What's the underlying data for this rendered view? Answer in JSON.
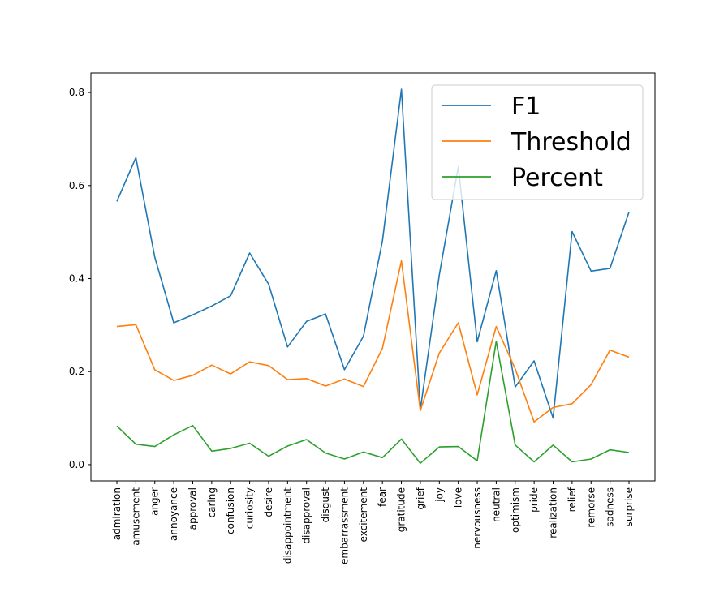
{
  "chart_data": {
    "type": "line",
    "title": "",
    "xlabel": "",
    "ylabel": "",
    "categories": [
      "admiration",
      "amusement",
      "anger",
      "annoyance",
      "approval",
      "caring",
      "confusion",
      "curiosity",
      "desire",
      "disappointment",
      "disapproval",
      "disgust",
      "embarrassment",
      "excitement",
      "fear",
      "gratitude",
      "grief",
      "joy",
      "love",
      "nervousness",
      "neutral",
      "optimism",
      "pride",
      "realization",
      "relief",
      "remorse",
      "sadness",
      "surprise"
    ],
    "series": [
      {
        "name": "F1",
        "color": "#1f77b4",
        "values": [
          0.566,
          0.66,
          0.446,
          0.305,
          0.322,
          0.341,
          0.363,
          0.455,
          0.388,
          0.253,
          0.308,
          0.324,
          0.204,
          0.276,
          0.481,
          0.807,
          0.118,
          0.408,
          0.641,
          0.264,
          0.417,
          0.167,
          0.223,
          0.1,
          0.501,
          0.416,
          0.422,
          0.543
        ]
      },
      {
        "name": "Threshold",
        "color": "#ff7f0e",
        "values": [
          0.297,
          0.301,
          0.204,
          0.181,
          0.192,
          0.214,
          0.195,
          0.221,
          0.213,
          0.183,
          0.185,
          0.169,
          0.184,
          0.168,
          0.25,
          0.438,
          0.116,
          0.24,
          0.305,
          0.15,
          0.297,
          0.206,
          0.092,
          0.123,
          0.131,
          0.172,
          0.246,
          0.231
        ]
      },
      {
        "name": "Percent",
        "color": "#2ca02c",
        "values": [
          0.083,
          0.044,
          0.039,
          0.064,
          0.084,
          0.029,
          0.035,
          0.046,
          0.018,
          0.04,
          0.054,
          0.025,
          0.012,
          0.027,
          0.015,
          0.055,
          0.003,
          0.038,
          0.039,
          0.008,
          0.265,
          0.042,
          0.006,
          0.042,
          0.006,
          0.012,
          0.032,
          0.026
        ]
      }
    ],
    "y_ticks": [
      "0.0",
      "0.2",
      "0.4",
      "0.6",
      "0.8"
    ],
    "y_tick_values": [
      0.0,
      0.2,
      0.4,
      0.6,
      0.8
    ],
    "ylim": [
      -0.035,
      0.842
    ],
    "grid": false,
    "legend_position": "upper right"
  }
}
